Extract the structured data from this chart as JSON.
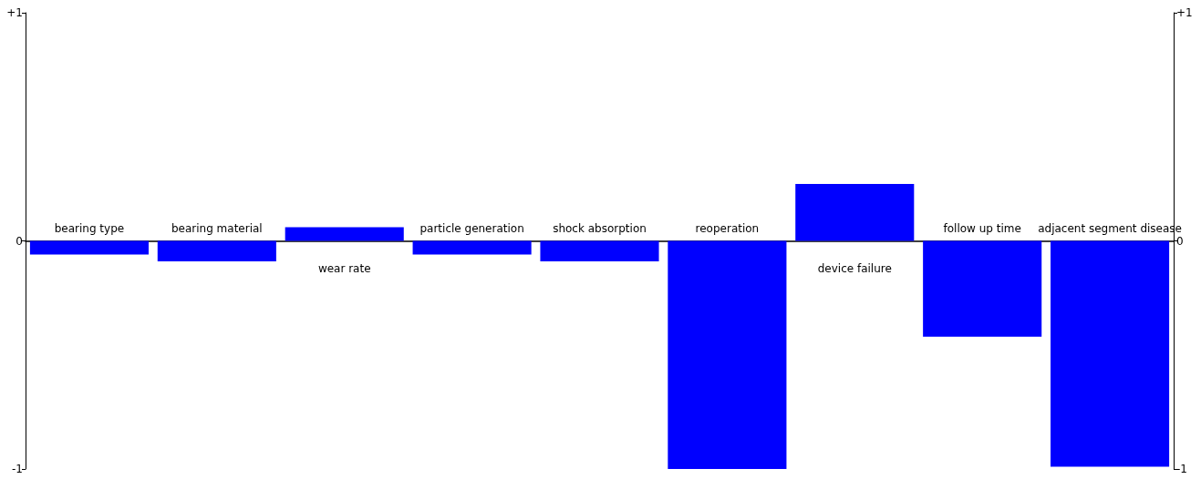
{
  "chart_data": {
    "type": "bar",
    "categories": [
      "bearing type",
      "bearing material",
      "wear rate",
      "particle generation",
      "shock absorption",
      "reoperation",
      "device failure",
      "follow up time",
      "adjacent segment disease"
    ],
    "series": [
      {
        "color": "#0000ff",
        "values": [
          -0.06,
          -0.09,
          0.06,
          -0.06,
          -0.09,
          -1.0,
          0.25,
          -0.42,
          -0.99
        ]
      }
    ],
    "ylim": [
      -1,
      1
    ],
    "yticks": [
      {
        "value": 1,
        "label": "+1"
      },
      0,
      {
        "value": -1,
        "label": "-1"
      }
    ],
    "y2lim": [
      -1,
      1
    ],
    "y2ticks": [
      {
        "value": 1,
        "label": "+1"
      },
      0,
      {
        "value": -1,
        "label": "-1"
      }
    ],
    "grid": false
  }
}
